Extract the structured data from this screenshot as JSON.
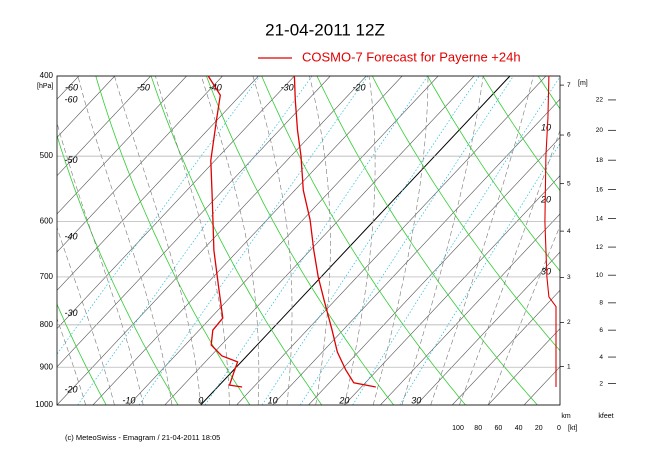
{
  "chart_data": {
    "type": "emagram",
    "title": "21-04-2011  12Z",
    "legend": "COSMO-7 Forecast for Payerne   +24h",
    "footer": "(c) MeteoSwiss - Emagram  /  21-04-2011  18:05",
    "y_unit": "[hPa]",
    "ylim": [
      400,
      1000
    ],
    "yticks": [
      400,
      500,
      600,
      700,
      800,
      900,
      1000
    ],
    "log_scale": true,
    "grid": true,
    "xlim": [
      -20,
      50
    ],
    "xticks": [
      -10,
      0,
      10,
      20,
      30
    ],
    "top_ticks": [
      -60,
      -50,
      -40,
      -30,
      -20
    ],
    "left_ticks": [
      -60,
      -50,
      -40,
      -30,
      -20
    ],
    "isoline_labels": [
      10,
      20,
      30
    ],
    "height_unit": "[m]",
    "height_km_label": "km",
    "height_km_ticks": [
      1,
      2,
      3,
      4,
      5,
      6,
      7
    ],
    "height_kft_label": "kfeet",
    "height_kft_ticks": [
      2,
      4,
      6,
      8,
      10,
      12,
      14,
      16,
      18,
      20,
      22
    ],
    "wind_lim": [
      100,
      0
    ],
    "wind_ticks": [
      100,
      80,
      60,
      40,
      20,
      0
    ],
    "wind_unit": "[kt]",
    "series": [
      {
        "color": "#e00000",
        "pressure": [
          951,
          940,
          907,
          863,
          812,
          746,
          700,
          650,
          597,
          550,
          500,
          465,
          428,
          400
        ],
        "temperature": [
          22,
          18.4,
          15.6,
          12.1,
          8.5,
          3.4,
          -0.4,
          -4.5,
          -9,
          -13.8,
          -18.6,
          -22.5,
          -26.7,
          -30
        ]
      },
      {
        "color": "#e00000",
        "pressure": [
          951,
          946,
          912,
          887,
          872,
          846,
          812,
          785,
          726,
          650,
          565,
          506,
          452,
          422,
          400
        ],
        "temperature": [
          3.4,
          1.4,
          0.3,
          -0.5,
          -3.5,
          -6.4,
          -8.1,
          -8.3,
          -12.5,
          -18.4,
          -25.2,
          -30.6,
          -35.1,
          -37.8,
          -42
        ]
      }
    ],
    "wind_speed": {
      "color": "#e00000",
      "pressure": [
        951,
        760,
        740,
        700,
        600,
        500,
        450,
        400
      ],
      "speed": [
        3,
        3,
        10,
        12,
        14,
        13,
        11,
        10
      ]
    }
  }
}
